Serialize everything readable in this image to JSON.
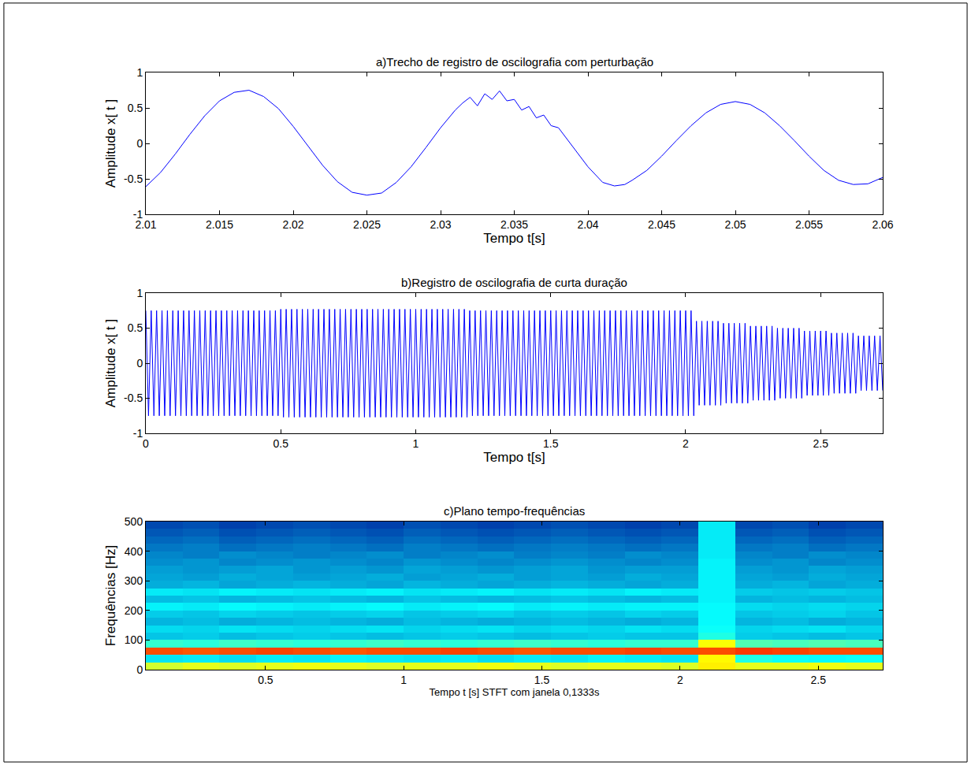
{
  "chart_data": [
    {
      "type": "line",
      "title": "a)Trecho de registro de oscilografia com perturbação",
      "x_label": "Tempo t[s]",
      "y_label": "Amplitude x[ t ]",
      "color": "#0000ff",
      "grid": false,
      "xlim": [
        2.01,
        2.06
      ],
      "xticks": [
        2.01,
        2.015,
        2.02,
        2.025,
        2.03,
        2.035,
        2.04,
        2.045,
        2.05,
        2.055,
        2.06
      ],
      "ylim": [
        -1,
        1
      ],
      "yticks": [
        -1,
        -0.5,
        0,
        0.5,
        1
      ],
      "x": [
        2.01,
        2.011,
        2.012,
        2.013,
        2.014,
        2.015,
        2.016,
        2.017,
        2.018,
        2.019,
        2.02,
        2.021,
        2.022,
        2.023,
        2.024,
        2.025,
        2.026,
        2.027,
        2.028,
        2.029,
        2.03,
        2.031,
        2.0315,
        2.032,
        2.0325,
        2.033,
        2.0335,
        2.034,
        2.0345,
        2.035,
        2.0355,
        2.036,
        2.0365,
        2.037,
        2.0375,
        2.038,
        2.039,
        2.04,
        2.041,
        2.0418,
        2.0425,
        2.043,
        2.044,
        2.045,
        2.046,
        2.047,
        2.048,
        2.049,
        2.05,
        2.051,
        2.052,
        2.053,
        2.054,
        2.055,
        2.056,
        2.057,
        2.058,
        2.059,
        2.06
      ],
      "values": [
        -0.61,
        -0.41,
        -0.15,
        0.13,
        0.39,
        0.6,
        0.72,
        0.75,
        0.66,
        0.49,
        0.24,
        -0.04,
        -0.31,
        -0.54,
        -0.69,
        -0.73,
        -0.7,
        -0.55,
        -0.33,
        -0.06,
        0.22,
        0.47,
        0.57,
        0.65,
        0.53,
        0.7,
        0.62,
        0.74,
        0.6,
        0.62,
        0.47,
        0.52,
        0.36,
        0.4,
        0.25,
        0.22,
        -0.05,
        -0.33,
        -0.55,
        -0.6,
        -0.58,
        -0.52,
        -0.38,
        -0.18,
        0.04,
        0.25,
        0.43,
        0.55,
        0.59,
        0.55,
        0.43,
        0.25,
        0.04,
        -0.18,
        -0.38,
        -0.52,
        -0.58,
        -0.57,
        -0.48
      ]
    },
    {
      "type": "line",
      "title": "b)Registro de oscilografia de curta duração",
      "x_label": "Tempo t[s]",
      "y_label": "Amplitude x[ t ]",
      "color": "#0000ff",
      "grid": false,
      "xlim": [
        0,
        2.73
      ],
      "xticks": [
        0,
        0.5,
        1,
        1.5,
        2,
        2.5
      ],
      "ylim": [
        -1,
        1
      ],
      "yticks": [
        -1,
        -0.5,
        0,
        0.5,
        1
      ],
      "x": [
        0,
        0.01,
        0.02,
        0.03,
        0.04,
        0.05,
        0.06,
        0.07,
        0.08,
        0.09,
        0.1,
        0.11,
        0.12,
        0.13,
        0.14,
        0.15,
        0.16,
        0.17,
        0.18,
        0.19,
        0.2,
        0.21,
        0.22,
        0.23,
        0.24,
        0.25,
        0.26,
        0.27,
        0.28,
        0.29,
        0.3,
        0.31,
        0.32,
        0.33,
        0.34,
        0.35,
        0.36,
        0.37,
        0.38,
        0.39,
        0.4,
        0.41,
        0.42,
        0.43,
        0.44,
        0.45,
        0.46,
        0.47,
        0.48,
        0.49,
        0.5,
        0.51,
        0.52,
        0.53,
        0.54,
        0.55,
        0.56,
        0.57,
        0.58,
        0.59,
        0.6,
        0.61,
        0.62,
        0.63,
        0.64,
        0.65,
        0.66,
        0.67,
        0.68,
        0.69,
        0.7,
        0.71,
        0.72,
        0.73,
        0.74,
        0.75,
        0.76,
        0.77,
        0.78,
        0.79,
        0.8,
        0.81,
        0.82,
        0.83,
        0.84,
        0.85,
        0.86,
        0.87,
        0.88,
        0.89,
        0.9,
        0.91,
        0.92,
        0.93,
        0.94,
        0.95,
        0.96,
        0.97,
        0.98,
        0.99,
        1.0,
        1.01,
        1.02,
        1.03,
        1.04,
        1.05,
        1.06,
        1.07,
        1.08,
        1.09,
        1.1,
        1.11,
        1.12,
        1.13,
        1.14,
        1.15,
        1.16,
        1.17,
        1.18,
        1.19,
        1.2,
        1.21,
        1.22,
        1.23,
        1.24,
        1.25,
        1.26,
        1.27,
        1.28,
        1.29,
        1.3,
        1.31,
        1.32,
        1.33,
        1.34,
        1.35,
        1.36,
        1.37,
        1.38,
        1.39,
        1.4,
        1.41,
        1.42,
        1.43,
        1.44,
        1.45,
        1.46,
        1.47,
        1.48,
        1.49,
        1.5,
        1.51,
        1.52,
        1.53,
        1.54,
        1.55,
        1.56,
        1.57,
        1.58,
        1.59,
        1.6,
        1.61,
        1.62,
        1.63,
        1.64,
        1.65,
        1.66,
        1.67,
        1.68,
        1.69,
        1.7,
        1.71,
        1.72,
        1.73,
        1.74,
        1.75,
        1.76,
        1.77,
        1.78,
        1.79,
        1.8,
        1.81,
        1.82,
        1.83,
        1.84,
        1.85,
        1.86,
        1.87,
        1.88,
        1.89,
        1.9,
        1.91,
        1.92,
        1.93,
        1.94,
        1.95,
        1.96,
        1.97,
        1.98,
        1.99,
        2.0,
        2.01,
        2.02,
        2.03,
        2.04,
        2.05,
        2.06,
        2.07,
        2.08,
        2.09,
        2.1,
        2.11,
        2.12,
        2.13,
        2.14,
        2.15,
        2.16,
        2.17,
        2.18,
        2.19,
        2.2,
        2.21,
        2.22,
        2.23,
        2.24,
        2.25,
        2.26,
        2.27,
        2.28,
        2.29,
        2.3,
        2.31,
        2.32,
        2.33,
        2.34,
        2.35,
        2.36,
        2.37,
        2.38,
        2.39,
        2.4,
        2.41,
        2.42,
        2.43,
        2.44,
        2.45,
        2.46,
        2.47,
        2.48,
        2.49,
        2.5,
        2.51,
        2.52,
        2.53,
        2.54,
        2.55,
        2.56,
        2.57,
        2.58,
        2.59,
        2.6,
        2.61,
        2.62,
        2.63,
        2.64,
        2.65,
        2.66,
        2.67,
        2.68,
        2.69,
        2.7,
        2.71,
        2.72,
        2.73
      ],
      "values": [
        0.75,
        -0.75,
        0.75,
        -0.75,
        0.75,
        -0.75,
        0.75,
        -0.75,
        0.75,
        -0.75,
        0.75,
        -0.75,
        0.75,
        -0.75,
        0.75,
        -0.75,
        0.75,
        -0.75,
        0.75,
        -0.75,
        0.75,
        -0.75,
        0.75,
        -0.75,
        0.75,
        -0.75,
        0.75,
        -0.75,
        0.75,
        -0.75,
        0.75,
        -0.75,
        0.75,
        -0.75,
        0.75,
        -0.75,
        0.75,
        -0.75,
        0.75,
        -0.75,
        0.75,
        -0.75,
        0.75,
        -0.75,
        0.75,
        -0.75,
        0.75,
        -0.75,
        0.75,
        -0.75,
        0.77,
        -0.77,
        0.77,
        -0.77,
        0.77,
        -0.77,
        0.77,
        -0.77,
        0.77,
        -0.77,
        0.77,
        -0.77,
        0.77,
        -0.77,
        0.77,
        -0.77,
        0.77,
        -0.77,
        0.77,
        -0.77,
        0.77,
        -0.77,
        0.77,
        -0.77,
        0.77,
        -0.77,
        0.77,
        -0.77,
        0.77,
        -0.77,
        0.77,
        -0.77,
        0.77,
        -0.77,
        0.77,
        -0.77,
        0.77,
        -0.77,
        0.77,
        -0.77,
        0.77,
        -0.77,
        0.77,
        -0.77,
        0.77,
        -0.77,
        0.77,
        -0.77,
        0.77,
        -0.77,
        0.77,
        -0.77,
        0.77,
        -0.77,
        0.77,
        -0.77,
        0.77,
        -0.77,
        0.77,
        -0.77,
        0.77,
        -0.77,
        0.77,
        -0.77,
        0.77,
        -0.77,
        0.77,
        -0.77,
        0.77,
        -0.77,
        0.75,
        -0.75,
        0.75,
        -0.75,
        0.75,
        -0.75,
        0.75,
        -0.75,
        0.75,
        -0.75,
        0.75,
        -0.75,
        0.75,
        -0.75,
        0.75,
        -0.75,
        0.75,
        -0.75,
        0.75,
        -0.75,
        0.75,
        -0.75,
        0.75,
        -0.75,
        0.75,
        -0.75,
        0.75,
        -0.75,
        0.75,
        -0.75,
        0.75,
        -0.75,
        0.75,
        -0.75,
        0.75,
        -0.75,
        0.75,
        -0.75,
        0.75,
        -0.75,
        0.75,
        -0.75,
        0.75,
        -0.75,
        0.75,
        -0.75,
        0.75,
        -0.75,
        0.75,
        -0.75,
        0.75,
        -0.75,
        0.75,
        -0.75,
        0.75,
        -0.75,
        0.75,
        -0.75,
        0.75,
        -0.75,
        0.75,
        -0.75,
        0.75,
        -0.75,
        0.75,
        -0.75,
        0.75,
        -0.75,
        0.75,
        -0.75,
        0.75,
        -0.75,
        0.75,
        -0.75,
        0.75,
        -0.75,
        0.75,
        -0.75,
        0.75,
        -0.75,
        0.75,
        -0.75,
        0.75,
        -0.75,
        0.6,
        -0.6,
        0.6,
        -0.6,
        0.6,
        -0.6,
        0.6,
        -0.6,
        0.6,
        -0.6,
        0.57,
        -0.57,
        0.57,
        -0.57,
        0.57,
        -0.57,
        0.57,
        -0.57,
        0.57,
        -0.57,
        0.53,
        -0.53,
        0.53,
        -0.53,
        0.53,
        -0.53,
        0.53,
        -0.53,
        0.53,
        -0.53,
        0.5,
        -0.5,
        0.5,
        -0.5,
        0.5,
        -0.5,
        0.5,
        -0.5,
        0.5,
        -0.5,
        0.46,
        -0.46,
        0.46,
        -0.46,
        0.46,
        -0.46,
        0.46,
        -0.46,
        0.46,
        -0.46,
        0.43,
        -0.43,
        0.43,
        -0.43,
        0.43,
        -0.43,
        0.43,
        -0.43,
        0.43,
        -0.43,
        0.39,
        -0.39,
        0.39,
        -0.39,
        0.39,
        -0.39,
        0.39,
        -0.39,
        0.39,
        -0.39
      ]
    },
    {
      "type": "heatmap",
      "title": "c)Plano tempo-frequências",
      "x_label": "Tempo t [s] STFT com janela 0,1333s",
      "y_label": "Frequências [Hz]",
      "grid": false,
      "xlim": [
        0.0667,
        2.7333
      ],
      "xticks": [
        0.5,
        1,
        1.5,
        2,
        2.5
      ],
      "ylim": [
        0,
        500
      ],
      "yticks": [
        0,
        100,
        200,
        300,
        400,
        500
      ],
      "zlim": [
        0,
        1
      ],
      "x": [
        0.1333,
        0.2667,
        0.4,
        0.5333,
        0.6667,
        0.8,
        0.9333,
        1.0667,
        1.2,
        1.3333,
        1.4667,
        1.6,
        1.7333,
        1.8667,
        2.0,
        2.1333,
        2.2667,
        2.4,
        2.5333,
        2.6667
      ],
      "y": [
        12.5,
        37.5,
        62.5,
        87.5,
        112.5,
        137.5,
        162.5,
        187.5,
        212.5,
        237.5,
        262.5,
        287.5,
        312.5,
        337.5,
        362.5,
        387.5,
        412.5,
        437.5,
        462.5,
        487.5
      ],
      "z": [
        [
          0.58,
          0.6,
          0.59,
          0.6,
          0.61,
          0.6,
          0.59,
          0.6,
          0.6,
          0.61,
          0.6,
          0.59,
          0.6,
          0.6,
          0.59,
          0.64,
          0.6,
          0.6,
          0.61,
          0.6
        ],
        [
          0.34,
          0.35,
          0.33,
          0.35,
          0.34,
          0.36,
          0.35,
          0.34,
          0.35,
          0.33,
          0.35,
          0.34,
          0.36,
          0.35,
          0.34,
          0.63,
          0.4,
          0.38,
          0.37,
          0.38
        ],
        [
          0.8,
          0.79,
          0.8,
          0.81,
          0.8,
          0.79,
          0.8,
          0.8,
          0.81,
          0.8,
          0.79,
          0.8,
          0.8,
          0.81,
          0.8,
          0.8,
          0.82,
          0.81,
          0.8,
          0.8
        ],
        [
          0.42,
          0.41,
          0.43,
          0.42,
          0.41,
          0.42,
          0.43,
          0.42,
          0.41,
          0.42,
          0.43,
          0.42,
          0.41,
          0.42,
          0.42,
          0.62,
          0.45,
          0.44,
          0.45,
          0.44
        ],
        [
          0.3,
          0.31,
          0.29,
          0.3,
          0.31,
          0.3,
          0.29,
          0.3,
          0.31,
          0.3,
          0.29,
          0.3,
          0.31,
          0.3,
          0.3,
          0.4,
          0.31,
          0.3,
          0.29,
          0.3
        ],
        [
          0.33,
          0.32,
          0.34,
          0.33,
          0.32,
          0.33,
          0.34,
          0.32,
          0.33,
          0.34,
          0.32,
          0.33,
          0.32,
          0.34,
          0.33,
          0.38,
          0.32,
          0.33,
          0.34,
          0.32
        ],
        [
          0.28,
          0.29,
          0.27,
          0.28,
          0.29,
          0.28,
          0.27,
          0.29,
          0.28,
          0.27,
          0.28,
          0.29,
          0.28,
          0.27,
          0.28,
          0.37,
          0.28,
          0.29,
          0.27,
          0.28
        ],
        [
          0.31,
          0.3,
          0.32,
          0.31,
          0.3,
          0.31,
          0.32,
          0.3,
          0.31,
          0.32,
          0.3,
          0.31,
          0.3,
          0.32,
          0.31,
          0.37,
          0.3,
          0.31,
          0.32,
          0.3
        ],
        [
          0.36,
          0.35,
          0.37,
          0.36,
          0.35,
          0.36,
          0.37,
          0.35,
          0.36,
          0.37,
          0.35,
          0.36,
          0.35,
          0.36,
          0.36,
          0.37,
          0.33,
          0.32,
          0.33,
          0.32
        ],
        [
          0.29,
          0.3,
          0.28,
          0.29,
          0.3,
          0.29,
          0.28,
          0.3,
          0.29,
          0.28,
          0.29,
          0.3,
          0.29,
          0.28,
          0.29,
          0.36,
          0.28,
          0.29,
          0.28,
          0.29
        ],
        [
          0.35,
          0.34,
          0.36,
          0.35,
          0.34,
          0.35,
          0.36,
          0.34,
          0.35,
          0.36,
          0.34,
          0.35,
          0.34,
          0.36,
          0.35,
          0.36,
          0.31,
          0.3,
          0.31,
          0.3
        ],
        [
          0.27,
          0.28,
          0.26,
          0.27,
          0.28,
          0.27,
          0.26,
          0.28,
          0.27,
          0.26,
          0.27,
          0.28,
          0.27,
          0.26,
          0.27,
          0.36,
          0.27,
          0.28,
          0.26,
          0.27
        ],
        [
          0.26,
          0.25,
          0.27,
          0.26,
          0.25,
          0.26,
          0.27,
          0.25,
          0.26,
          0.27,
          0.25,
          0.26,
          0.25,
          0.27,
          0.26,
          0.36,
          0.26,
          0.25,
          0.27,
          0.26
        ],
        [
          0.25,
          0.24,
          0.25,
          0.26,
          0.24,
          0.25,
          0.24,
          0.26,
          0.25,
          0.24,
          0.25,
          0.26,
          0.24,
          0.25,
          0.25,
          0.36,
          0.25,
          0.24,
          0.26,
          0.25
        ],
        [
          0.23,
          0.24,
          0.22,
          0.23,
          0.24,
          0.23,
          0.22,
          0.24,
          0.23,
          0.22,
          0.23,
          0.24,
          0.23,
          0.22,
          0.23,
          0.36,
          0.23,
          0.24,
          0.22,
          0.23
        ],
        [
          0.22,
          0.21,
          0.23,
          0.22,
          0.21,
          0.22,
          0.23,
          0.21,
          0.22,
          0.23,
          0.21,
          0.22,
          0.21,
          0.23,
          0.22,
          0.35,
          0.22,
          0.21,
          0.23,
          0.22
        ],
        [
          0.2,
          0.21,
          0.19,
          0.2,
          0.21,
          0.2,
          0.19,
          0.21,
          0.2,
          0.19,
          0.2,
          0.21,
          0.2,
          0.19,
          0.2,
          0.35,
          0.2,
          0.21,
          0.19,
          0.2
        ],
        [
          0.18,
          0.19,
          0.17,
          0.18,
          0.19,
          0.18,
          0.17,
          0.19,
          0.18,
          0.17,
          0.18,
          0.19,
          0.18,
          0.17,
          0.18,
          0.35,
          0.18,
          0.19,
          0.17,
          0.18
        ],
        [
          0.16,
          0.17,
          0.15,
          0.16,
          0.17,
          0.16,
          0.15,
          0.17,
          0.16,
          0.15,
          0.16,
          0.17,
          0.16,
          0.15,
          0.16,
          0.35,
          0.16,
          0.17,
          0.15,
          0.16
        ],
        [
          0.14,
          0.15,
          0.13,
          0.14,
          0.15,
          0.14,
          0.13,
          0.15,
          0.14,
          0.13,
          0.14,
          0.15,
          0.14,
          0.13,
          0.14,
          0.35,
          0.14,
          0.15,
          0.13,
          0.14
        ]
      ]
    }
  ]
}
